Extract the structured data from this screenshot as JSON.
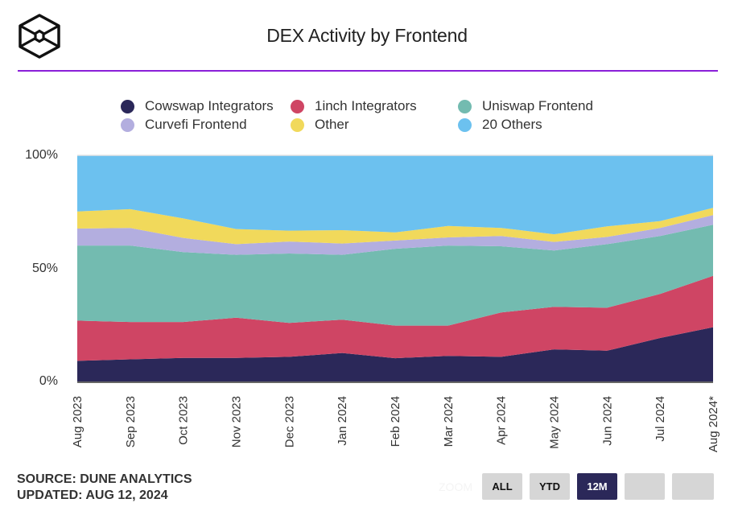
{
  "header": {
    "title": "DEX Activity by Frontend",
    "logo_icon": "hexagon-cube-logo-icon"
  },
  "footer": {
    "source": "SOURCE: DUNE ANALYTICS",
    "updated": "UPDATED: AUG 12, 2024"
  },
  "zoom_controls": {
    "label": "ZOOM",
    "buttons": [
      {
        "label": "ALL",
        "active": false
      },
      {
        "label": "YTD",
        "active": false
      },
      {
        "label": "12M",
        "active": true
      },
      {
        "label": "",
        "active": false
      },
      {
        "label": "",
        "active": false
      }
    ]
  },
  "chart_data": {
    "type": "area",
    "stacked": true,
    "normalized": true,
    "title": "DEX Activity by Frontend",
    "xlabel": "",
    "ylabel": "",
    "ylim": [
      0,
      100
    ],
    "yticks": [
      "0%",
      "50%",
      "100%"
    ],
    "ytick_values": [
      0,
      50,
      100
    ],
    "legend_position": "top",
    "categories": [
      "Aug 2023",
      "Sep 2023",
      "Oct 2023",
      "Nov 2023",
      "Dec 2023",
      "Jan 2024",
      "Feb 2024",
      "Mar 2024",
      "Apr 2024",
      "May 2024",
      "Jun 2024",
      "Jul 2024",
      "Aug 2024*"
    ],
    "series": [
      {
        "name": "Cowswap Integrators",
        "color": "#2b2859",
        "values": [
          9.1,
          9.8,
          10.4,
          10.4,
          10.9,
          12.6,
          10.3,
          11.3,
          10.9,
          14.2,
          13.6,
          19.2,
          24.0
        ]
      },
      {
        "name": "1inch Integrators",
        "color": "#cf4564",
        "values": [
          17.8,
          16.5,
          15.9,
          17.8,
          15.0,
          14.7,
          14.4,
          13.4,
          19.6,
          18.8,
          19.0,
          19.5,
          22.7
        ]
      },
      {
        "name": "Uniswap Frontend",
        "color": "#73bbb0",
        "values": [
          33.2,
          33.8,
          30.9,
          27.8,
          30.7,
          28.7,
          34.0,
          35.4,
          29.3,
          24.9,
          28.1,
          25.6,
          22.6
        ]
      },
      {
        "name": "Curvefi Frontend",
        "color": "#b3aedf",
        "values": [
          7.5,
          7.8,
          6.3,
          4.7,
          5.3,
          5.0,
          3.6,
          3.6,
          4.5,
          3.8,
          3.2,
          3.6,
          4.3
        ]
      },
      {
        "name": "Other",
        "color": "#f1d95b",
        "values": [
          7.6,
          8.3,
          8.6,
          6.7,
          4.8,
          5.9,
          3.6,
          5.1,
          3.6,
          3.4,
          4.7,
          3.0,
          3.2
        ]
      },
      {
        "name": "20 Others",
        "color": "#6cc1ef",
        "values": [
          24.8,
          23.8,
          27.9,
          32.6,
          33.3,
          33.1,
          34.1,
          31.2,
          32.1,
          34.9,
          31.4,
          29.1,
          23.2
        ]
      }
    ]
  }
}
